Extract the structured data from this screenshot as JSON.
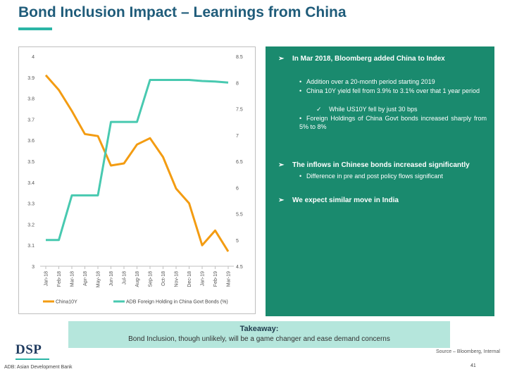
{
  "header": {
    "title": "Bond Inclusion Impact – Learnings from China"
  },
  "chart_data": {
    "type": "line",
    "title": "",
    "categories": [
      "Jan-18",
      "Feb-18",
      "Mar-18",
      "Apr-18",
      "May-18",
      "Jun-18",
      "Jul-18",
      "Aug-18",
      "Sep-18",
      "Oct-18",
      "Nov-18",
      "Dec-18",
      "Jan-19",
      "Feb-19",
      "Mar-19"
    ],
    "y_left": {
      "range": [
        3,
        4
      ],
      "ticks": [
        "3",
        "3.1",
        "3.2",
        "3.3",
        "3.4",
        "3.5",
        "3.6",
        "3.7",
        "3.8",
        "3.9",
        "4"
      ]
    },
    "y_right": {
      "range": [
        4.5,
        8.5
      ],
      "ticks": [
        "4.5",
        "5",
        "5.5",
        "6",
        "6.5",
        "7",
        "7.5",
        "8",
        "8.5"
      ]
    },
    "series": [
      {
        "name": "China10Y",
        "axis": "left",
        "color": "#f39c12",
        "values": [
          3.91,
          3.84,
          3.74,
          3.63,
          3.62,
          3.48,
          3.49,
          3.58,
          3.61,
          3.52,
          3.37,
          3.3,
          3.1,
          3.17,
          3.07
        ]
      },
      {
        "name": "ADB Foreign Holding in China Govt Bonds (%)",
        "axis": "right",
        "color": "#48c9b0",
        "values": [
          5.0,
          5.0,
          5.85,
          5.85,
          5.85,
          7.25,
          7.25,
          7.25,
          8.05,
          8.05,
          8.05,
          8.05,
          8.03,
          8.02,
          8.0
        ]
      }
    ],
    "legend_position": "bottom",
    "grid": false
  },
  "panel": {
    "point1": {
      "arrow": "➢",
      "text": "In Mar 2018, Bloomberg added China to Index"
    },
    "point1_subs": [
      {
        "bullet": "•",
        "text": "Addition over a 20-month period starting 2019"
      },
      {
        "bullet": "•",
        "text": "China 10Y yield fell from 3.9% to 3.1% over that 1 year period"
      }
    ],
    "check_item": {
      "bullet": "✓",
      "text": "While US10Y fell by just 30 bps"
    },
    "point1_sub3": {
      "bullet": "•",
      "text": "Foreign Holdings of China Govt bonds increased sharply from 5% to 8%"
    },
    "point2": {
      "arrow": "➢",
      "text": "The inflows in Chinese bonds increased significantly"
    },
    "point2_sub": {
      "bullet": "•",
      "text": "Difference in pre and post policy flows significant"
    },
    "point3": {
      "arrow": "➢",
      "text": "We expect similar move in India"
    }
  },
  "takeaway": {
    "title": "Takeaway:",
    "text": "Bond Inclusion, though unlikely, will be a game changer and ease demand concerns"
  },
  "footer": {
    "logo": "DSP",
    "source": "Source – Bloomberg, Internal",
    "footnote": "ADB: Asian Development Bank",
    "page": "41"
  },
  "colors": {
    "title": "#1f5c7a",
    "accent": "#2bb5a6",
    "panel": "#1a8a6e",
    "takeaway_bg": "#b5e6dc"
  }
}
